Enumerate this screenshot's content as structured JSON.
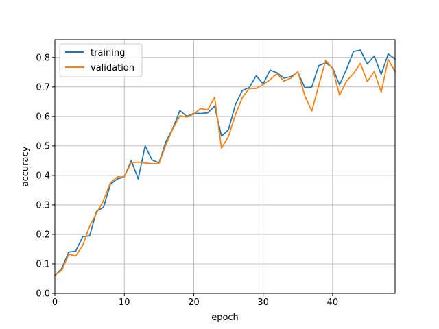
{
  "chart_data": {
    "type": "line",
    "xlabel": "epoch",
    "ylabel": "accuracy",
    "xlim": [
      0,
      49
    ],
    "ylim": [
      0.0,
      0.86
    ],
    "xticks": [
      0,
      10,
      20,
      30,
      40
    ],
    "yticks": [
      0.0,
      0.1,
      0.2,
      0.3,
      0.4,
      0.5,
      0.6,
      0.7,
      0.8
    ],
    "grid": true,
    "legend": {
      "placement": "top-left"
    },
    "x": [
      0,
      1,
      2,
      3,
      4,
      5,
      6,
      7,
      8,
      9,
      10,
      11,
      12,
      13,
      14,
      15,
      16,
      17,
      18,
      19,
      20,
      21,
      22,
      23,
      24,
      25,
      26,
      27,
      28,
      29,
      30,
      31,
      32,
      33,
      34,
      35,
      36,
      37,
      38,
      39,
      40,
      41,
      42,
      43,
      44,
      45,
      46,
      47,
      48,
      49
    ],
    "series": [
      {
        "name": "training",
        "color": "#1f77b4",
        "values": [
          0.06,
          0.085,
          0.14,
          0.143,
          0.192,
          0.195,
          0.278,
          0.292,
          0.37,
          0.388,
          0.395,
          0.45,
          0.388,
          0.5,
          0.452,
          0.443,
          0.515,
          0.56,
          0.62,
          0.6,
          0.61,
          0.61,
          0.612,
          0.635,
          0.533,
          0.555,
          0.64,
          0.688,
          0.698,
          0.738,
          0.71,
          0.757,
          0.748,
          0.73,
          0.735,
          0.75,
          0.697,
          0.7,
          0.772,
          0.782,
          0.765,
          0.707,
          0.76,
          0.82,
          0.825,
          0.778,
          0.805,
          0.742,
          0.812,
          0.795
        ]
      },
      {
        "name": "validation",
        "color": "#ff7f0e",
        "values": [
          0.062,
          0.078,
          0.133,
          0.127,
          0.162,
          0.228,
          0.272,
          0.315,
          0.375,
          0.395,
          0.395,
          0.443,
          0.445,
          0.442,
          0.44,
          0.44,
          0.505,
          0.558,
          0.602,
          0.598,
          0.608,
          0.627,
          0.622,
          0.665,
          0.492,
          0.532,
          0.606,
          0.664,
          0.695,
          0.695,
          0.708,
          0.725,
          0.745,
          0.72,
          0.73,
          0.752,
          0.67,
          0.618,
          0.705,
          0.79,
          0.762,
          0.672,
          0.72,
          0.745,
          0.78,
          0.718,
          0.752,
          0.682,
          0.793,
          0.752
        ]
      }
    ]
  }
}
